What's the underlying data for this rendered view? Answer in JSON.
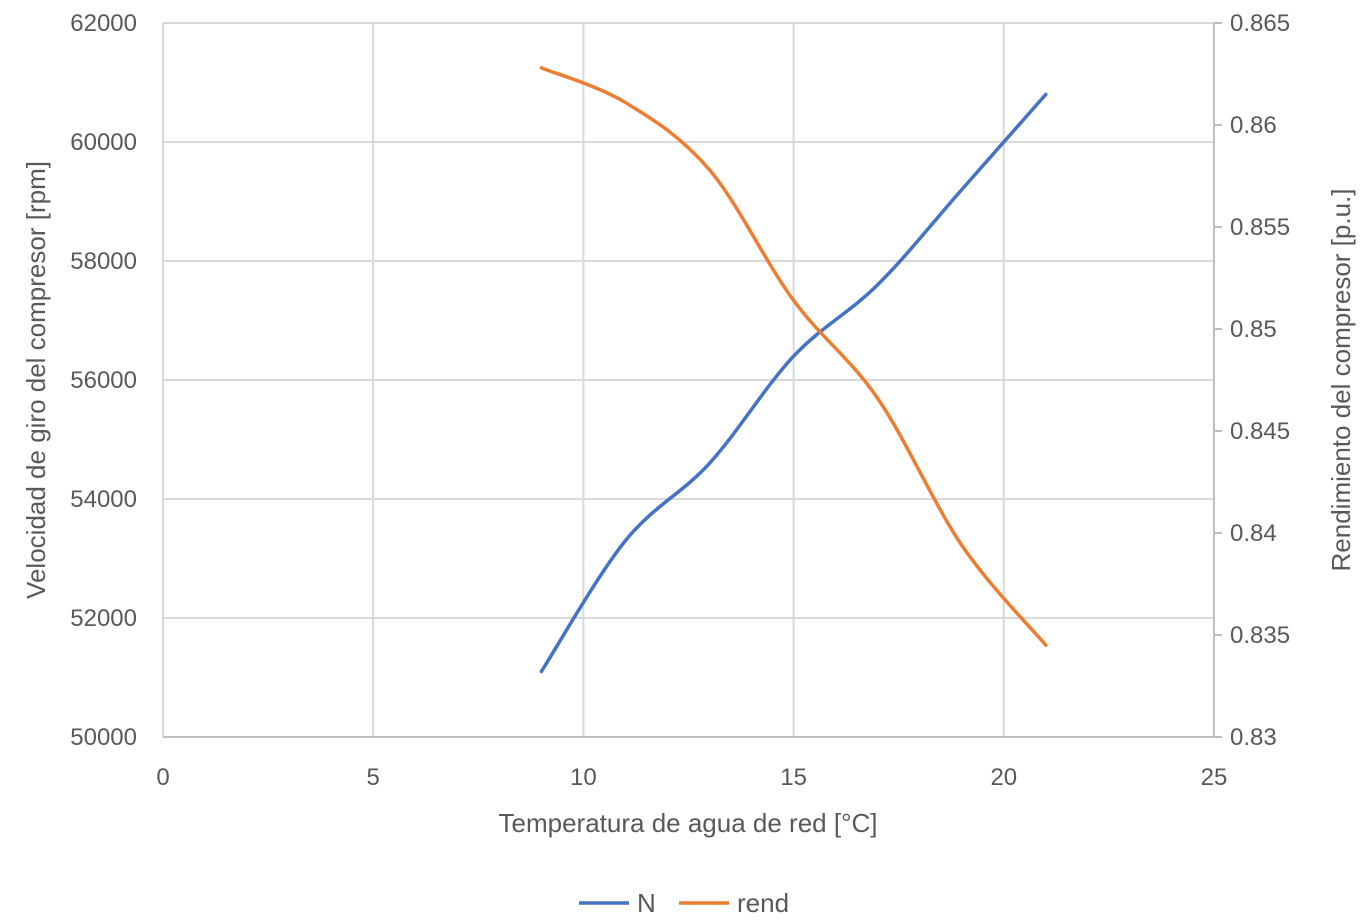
{
  "chart_data": {
    "type": "line",
    "title": "",
    "xlabel": "Temperatura de agua de red [°C]",
    "ylabel": "Velocidad de giro del compresor [rpm]",
    "y2label": "Rendimiento del compresor [p.u.]",
    "xlim": [
      0,
      25
    ],
    "ylim": [
      50000,
      62000
    ],
    "y2lim": [
      0.83,
      0.865
    ],
    "xticks": [
      "0",
      "5",
      "10",
      "15",
      "20",
      "25"
    ],
    "yticks": [
      "50000",
      "52000",
      "54000",
      "56000",
      "58000",
      "60000",
      "62000"
    ],
    "y2ticks": [
      "0.83",
      "0.835",
      "0.84",
      "0.845",
      "0.85",
      "0.855",
      "0.86",
      "0.865"
    ],
    "grid": true,
    "legend_position": "bottom",
    "series": [
      {
        "name": "N",
        "axis": "left",
        "color": "#4472C4",
        "x": [
          9,
          11,
          13,
          15,
          17,
          19,
          21
        ],
        "y": [
          51100,
          53300,
          54600,
          56400,
          57600,
          59200,
          60800
        ]
      },
      {
        "name": "rend",
        "axis": "right",
        "color": "#ED7D31",
        "x": [
          9,
          11,
          13,
          15,
          17,
          19,
          21
        ],
        "y": [
          0.8628,
          0.8611,
          0.8578,
          0.8514,
          0.8466,
          0.8394,
          0.8345
        ]
      }
    ]
  }
}
